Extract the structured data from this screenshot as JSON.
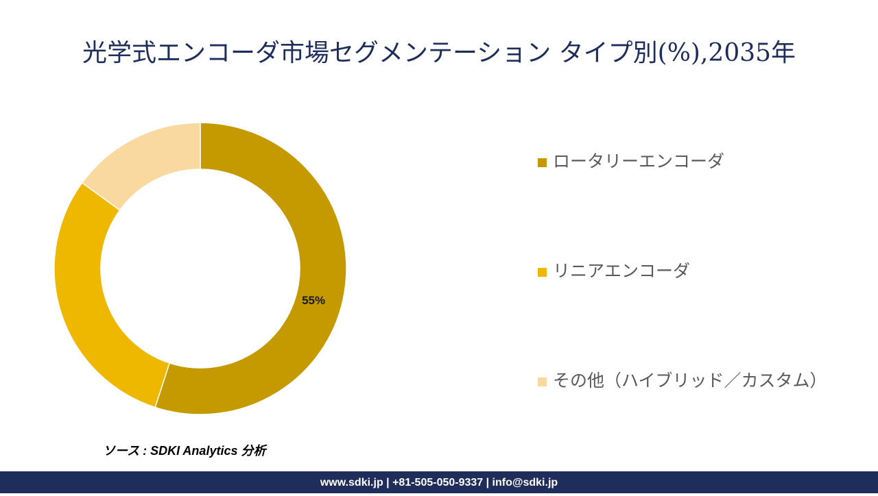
{
  "chart_data": {
    "type": "donut",
    "title": "光学式エンコーダ市場セグメンテーション タイプ別(%),2035年",
    "categories": [
      "ロータリーエンコーダ",
      "リニアエンコーダ",
      "その他（ハイブリッド／カスタム）"
    ],
    "values": [
      55,
      30,
      15
    ],
    "value_labels": [
      "55%",
      null,
      null
    ],
    "colors": [
      "#c49a00",
      "#efb800",
      "#fad9a0"
    ]
  },
  "source": "ソース : SDKI Analytics 分析",
  "footer": "www.sdki.jp | +81-505-050-9337 | info@sdki.jp"
}
